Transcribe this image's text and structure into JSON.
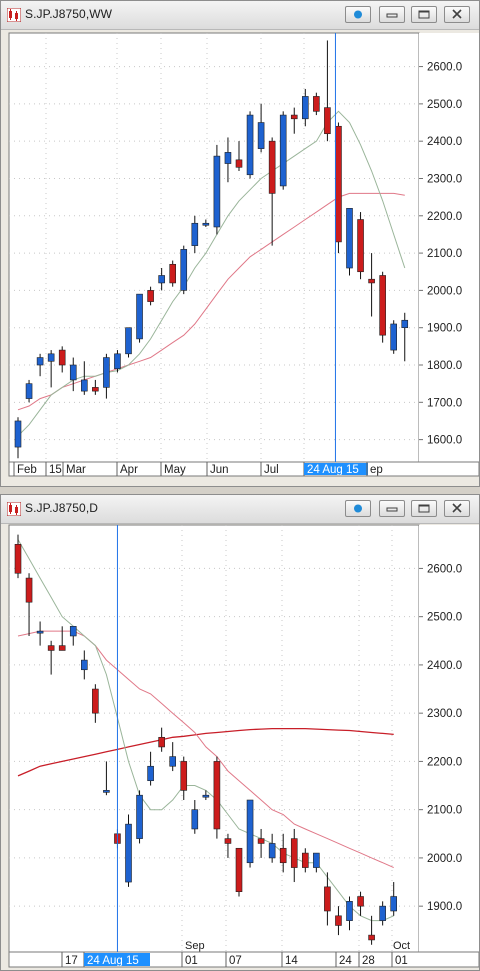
{
  "colors": {
    "up": "#1e62d0",
    "down": "#cc1c1c",
    "maFast": "#9ab59a",
    "maMid": "#e07888",
    "maSlow": "#c81e28",
    "cursor": "#1f72e8",
    "highlight": "#1e90ff",
    "grid": "#c8c8c8"
  },
  "window_icons": {
    "app": "candlestick-app-icon",
    "link": "link-dot-icon",
    "minimize": "minimize-icon",
    "maximize": "maximize-icon",
    "close": "close-icon"
  },
  "weekly": {
    "title": "S.JP.J8750,WW",
    "highlight_label": "24 Aug 15",
    "chart_data": {
      "type": "candlestick",
      "timeframe": "weekly",
      "ylim": [
        1540,
        2690
      ],
      "yticks": [
        "2600.0",
        "2500.0",
        "2400.0",
        "2300.0",
        "2200.0",
        "2100.0",
        "2000.0",
        "1900.0",
        "1800.0",
        "1700.0",
        "1600.0"
      ],
      "xticks": [
        "Feb",
        "15",
        "Mar",
        "Apr",
        "May",
        "Jun",
        "Jul",
        "24 Aug 15",
        "ep"
      ],
      "grid": true,
      "cursor_index": 29,
      "candles": [
        {
          "o": 1580,
          "h": 1660,
          "l": 1550,
          "c": 1650
        },
        {
          "o": 1710,
          "h": 1760,
          "l": 1700,
          "c": 1750
        },
        {
          "o": 1800,
          "h": 1830,
          "l": 1770,
          "c": 1820
        },
        {
          "o": 1810,
          "h": 1840,
          "l": 1740,
          "c": 1830
        },
        {
          "o": 1840,
          "h": 1850,
          "l": 1780,
          "c": 1800
        },
        {
          "o": 1760,
          "h": 1820,
          "l": 1730,
          "c": 1800
        },
        {
          "o": 1730,
          "h": 1810,
          "l": 1720,
          "c": 1760
        },
        {
          "o": 1740,
          "h": 1760,
          "l": 1720,
          "c": 1730
        },
        {
          "o": 1740,
          "h": 1830,
          "l": 1710,
          "c": 1820
        },
        {
          "o": 1790,
          "h": 1840,
          "l": 1780,
          "c": 1830
        },
        {
          "o": 1830,
          "h": 1900,
          "l": 1820,
          "c": 1900
        },
        {
          "o": 1870,
          "h": 1990,
          "l": 1860,
          "c": 1990
        },
        {
          "o": 2000,
          "h": 2010,
          "l": 1960,
          "c": 1970
        },
        {
          "o": 2020,
          "h": 2060,
          "l": 2000,
          "c": 2040
        },
        {
          "o": 2070,
          "h": 2080,
          "l": 2010,
          "c": 2020
        },
        {
          "o": 2000,
          "h": 2120,
          "l": 1990,
          "c": 2110
        },
        {
          "o": 2120,
          "h": 2200,
          "l": 2100,
          "c": 2180
        },
        {
          "o": 2180,
          "h": 2190,
          "l": 2170,
          "c": 2180
        },
        {
          "o": 2170,
          "h": 2390,
          "l": 2150,
          "c": 2360
        },
        {
          "o": 2340,
          "h": 2410,
          "l": 2290,
          "c": 2370
        },
        {
          "o": 2350,
          "h": 2400,
          "l": 2320,
          "c": 2330
        },
        {
          "o": 2310,
          "h": 2480,
          "l": 2300,
          "c": 2470
        },
        {
          "o": 2380,
          "h": 2500,
          "l": 2370,
          "c": 2450
        },
        {
          "o": 2400,
          "h": 2410,
          "l": 2120,
          "c": 2260
        },
        {
          "o": 2280,
          "h": 2480,
          "l": 2270,
          "c": 2470
        },
        {
          "o": 2470,
          "h": 2490,
          "l": 2420,
          "c": 2460
        },
        {
          "o": 2460,
          "h": 2540,
          "l": 2440,
          "c": 2520
        },
        {
          "o": 2520,
          "h": 2530,
          "l": 2470,
          "c": 2480
        },
        {
          "o": 2490,
          "h": 2670,
          "l": 2400,
          "c": 2420
        },
        {
          "o": 2440,
          "h": 2450,
          "l": 2100,
          "c": 2130
        },
        {
          "o": 2060,
          "h": 2220,
          "l": 2040,
          "c": 2220
        },
        {
          "o": 2190,
          "h": 2210,
          "l": 2030,
          "c": 2050
        },
        {
          "o": 2030,
          "h": 2100,
          "l": 1930,
          "c": 2020
        },
        {
          "o": 2040,
          "h": 2050,
          "l": 1860,
          "c": 1880
        },
        {
          "o": 1840,
          "h": 1920,
          "l": 1830,
          "c": 1910
        },
        {
          "o": 1900,
          "h": 1940,
          "l": 1810,
          "c": 1920
        }
      ],
      "ma_fast": [
        1610,
        1640,
        1680,
        1720,
        1740,
        1760,
        1770,
        1770,
        1780,
        1785,
        1800,
        1830,
        1870,
        1920,
        1970,
        2010,
        2060,
        2100,
        2150,
        2200,
        2240,
        2270,
        2300,
        2320,
        2340,
        2360,
        2380,
        2400,
        2450,
        2480,
        2450,
        2390,
        2320,
        2240,
        2150,
        2060
      ],
      "ma_mid": [
        1680,
        1690,
        1710,
        1720,
        1740,
        1750,
        1760,
        1770,
        1780,
        1790,
        1800,
        1810,
        1820,
        1840,
        1860,
        1880,
        1910,
        1950,
        1990,
        2030,
        2060,
        2090,
        2110,
        2130,
        2150,
        2170,
        2190,
        2210,
        2230,
        2250,
        2260,
        2260,
        2260,
        2260,
        2260,
        2255
      ]
    }
  },
  "daily": {
    "title": "S.JP.J8750,D",
    "highlight_label": "24 Aug 15",
    "month_label": "Sep",
    "chart_data": {
      "type": "candlestick",
      "timeframe": "daily",
      "ylim": [
        1805,
        2690
      ],
      "yticks": [
        "2600.0",
        "2500.0",
        "2400.0",
        "2300.0",
        "2200.0",
        "2100.0",
        "2000.0",
        "1900.0"
      ],
      "xticks": [
        "17",
        "24 Aug 15",
        "01",
        "07",
        "14",
        "24",
        "28",
        "01"
      ],
      "top_labels": [
        "Sep",
        "Oct"
      ],
      "grid": true,
      "cursor_index": 9,
      "candles": [
        {
          "o": 2650,
          "h": 2670,
          "l": 2580,
          "c": 2590
        },
        {
          "o": 2580,
          "h": 2590,
          "l": 2460,
          "c": 2530
        },
        {
          "o": 2470,
          "h": 2490,
          "l": 2440,
          "c": 2470
        },
        {
          "o": 2440,
          "h": 2450,
          "l": 2380,
          "c": 2430
        },
        {
          "o": 2440,
          "h": 2480,
          "l": 2430,
          "c": 2430
        },
        {
          "o": 2460,
          "h": 2480,
          "l": 2440,
          "c": 2480
        },
        {
          "o": 2390,
          "h": 2430,
          "l": 2370,
          "c": 2410
        },
        {
          "o": 2350,
          "h": 2360,
          "l": 2280,
          "c": 2300
        },
        {
          "o": 2140,
          "h": 2200,
          "l": 2130,
          "c": 2140
        },
        {
          "o": 2050,
          "h": 2060,
          "l": 2020,
          "c": 2030
        },
        {
          "o": 1950,
          "h": 2090,
          "l": 1940,
          "c": 2070
        },
        {
          "o": 2040,
          "h": 2140,
          "l": 2030,
          "c": 2130
        },
        {
          "o": 2160,
          "h": 2220,
          "l": 2150,
          "c": 2190
        },
        {
          "o": 2250,
          "h": 2270,
          "l": 2220,
          "c": 2230
        },
        {
          "o": 2190,
          "h": 2240,
          "l": 2180,
          "c": 2210
        },
        {
          "o": 2200,
          "h": 2210,
          "l": 2120,
          "c": 2140
        },
        {
          "o": 2060,
          "h": 2120,
          "l": 2050,
          "c": 2100
        },
        {
          "o": 2130,
          "h": 2140,
          "l": 2120,
          "c": 2130
        },
        {
          "o": 2200,
          "h": 2210,
          "l": 2040,
          "c": 2060
        },
        {
          "o": 2040,
          "h": 2050,
          "l": 2000,
          "c": 2030
        },
        {
          "o": 2020,
          "h": 2020,
          "l": 1920,
          "c": 1930
        },
        {
          "o": 1990,
          "h": 2120,
          "l": 1980,
          "c": 2120
        },
        {
          "o": 2040,
          "h": 2060,
          "l": 2000,
          "c": 2030
        },
        {
          "o": 2000,
          "h": 2050,
          "l": 1990,
          "c": 2030
        },
        {
          "o": 2020,
          "h": 2050,
          "l": 1970,
          "c": 1990
        },
        {
          "o": 2040,
          "h": 2060,
          "l": 1950,
          "c": 1980
        },
        {
          "o": 2010,
          "h": 2020,
          "l": 1970,
          "c": 1980
        },
        {
          "o": 1980,
          "h": 2010,
          "l": 1970,
          "c": 2010
        },
        {
          "o": 1940,
          "h": 1970,
          "l": 1860,
          "c": 1890
        },
        {
          "o": 1880,
          "h": 1900,
          "l": 1840,
          "c": 1860
        },
        {
          "o": 1870,
          "h": 1920,
          "l": 1850,
          "c": 1910
        },
        {
          "o": 1920,
          "h": 1930,
          "l": 1880,
          "c": 1900
        },
        {
          "o": 1840,
          "h": 1880,
          "l": 1820,
          "c": 1830
        },
        {
          "o": 1870,
          "h": 1910,
          "l": 1860,
          "c": 1900
        },
        {
          "o": 1890,
          "h": 1950,
          "l": 1880,
          "c": 1920
        }
      ],
      "ma_fast": [
        2660,
        2620,
        2580,
        2540,
        2500,
        2480,
        2460,
        2440,
        2380,
        2290,
        2200,
        2130,
        2100,
        2100,
        2120,
        2150,
        2150,
        2140,
        2120,
        2090,
        2060,
        2050,
        2040,
        2030,
        2010,
        2000,
        1990,
        1990,
        1960,
        1930,
        1900,
        1880,
        1870,
        1870,
        1880
      ],
      "ma_mid": [
        2460,
        2465,
        2470,
        2470,
        2470,
        2470,
        2460,
        2440,
        2410,
        2390,
        2370,
        2350,
        2340,
        2320,
        2300,
        2280,
        2260,
        2230,
        2210,
        2180,
        2160,
        2140,
        2120,
        2100,
        2090,
        2070,
        2060,
        2050,
        2040,
        2030,
        2020,
        2010,
        2000,
        1990,
        1980
      ],
      "ma_slow": [
        2170,
        2180,
        2190,
        2195,
        2200,
        2205,
        2210,
        2215,
        2220,
        2225,
        2230,
        2235,
        2240,
        2245,
        2250,
        2252,
        2255,
        2258,
        2260,
        2262,
        2264,
        2266,
        2267,
        2268,
        2268,
        2268,
        2268,
        2267,
        2266,
        2265,
        2264,
        2262,
        2260,
        2258,
        2256
      ]
    }
  }
}
